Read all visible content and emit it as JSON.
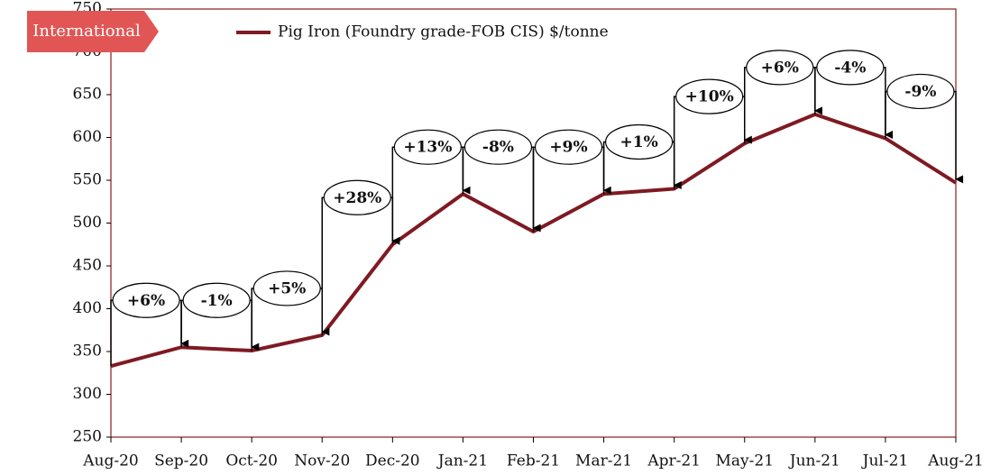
{
  "chart_data": {
    "type": "line",
    "tag": "International",
    "categories": [
      "Aug-20",
      "Sep-20",
      "Oct-20",
      "Nov-20",
      "Dec-20",
      "Jan-21",
      "Feb-21",
      "Mar-21",
      "Apr-21",
      "May-21",
      "Jun-21",
      "Jul-21",
      "Aug-21"
    ],
    "series": [
      {
        "name": "Pig Iron (Foundry grade-FOB CIS) $/tonne",
        "color": "#7f1a22",
        "values": [
          333,
          355,
          351,
          369,
          475,
          534,
          490,
          534,
          540,
          593,
          627,
          599,
          547
        ]
      }
    ],
    "annotations": [
      "+6%",
      "-1%",
      "+5%",
      "+28%",
      "+13%",
      "-8%",
      "+9%",
      "+1%",
      "+10%",
      "+6%",
      "-4%",
      "-9%"
    ],
    "ylim": [
      250,
      750
    ],
    "yticks": [
      250,
      300,
      350,
      400,
      450,
      500,
      550,
      600,
      650,
      700,
      750
    ]
  }
}
